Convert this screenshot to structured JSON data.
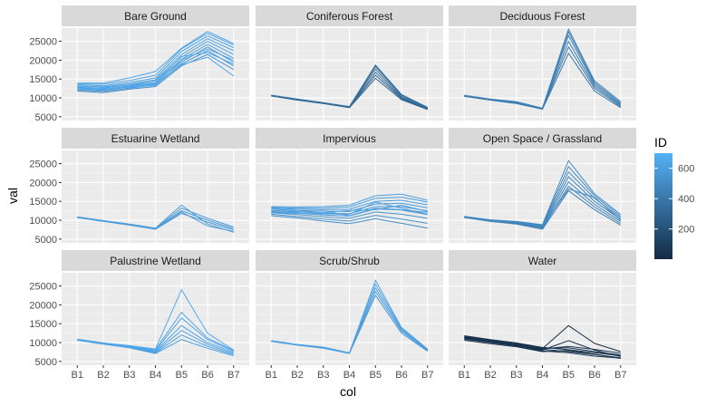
{
  "chart_data": {
    "type": "line",
    "facet_layout": "3x3 grid",
    "x_axis": {
      "label": "col",
      "categories": [
        "B1",
        "B2",
        "B3",
        "B4",
        "B5",
        "B6",
        "B7"
      ]
    },
    "y_axis": {
      "label": "val",
      "ticks": [
        5000,
        10000,
        15000,
        20000,
        25000
      ],
      "ylim": [
        4000,
        28500
      ]
    },
    "legend": {
      "title": "ID",
      "type": "colorbar",
      "position": "right",
      "ticks": [
        200,
        400,
        600
      ],
      "range": [
        1,
        700
      ],
      "low_color": "#132B43",
      "high_color": "#56B1F7"
    },
    "grid": true,
    "background": "#EBEBEB",
    "panels": [
      {
        "title": "Bare Ground",
        "series": [
          {
            "id": 520,
            "values": [
              11800,
              11400,
              12300,
              13000,
              18500,
              21500,
              17500
            ]
          },
          {
            "id": 540,
            "values": [
              12100,
              11700,
              12600,
              13400,
              19000,
              22500,
              18500
            ]
          },
          {
            "id": 560,
            "values": [
              12400,
              12000,
              12900,
              13800,
              19500,
              23500,
              19500
            ]
          },
          {
            "id": 580,
            "values": [
              12700,
              12300,
              13100,
              14100,
              20200,
              24200,
              20500
            ]
          },
          {
            "id": 600,
            "values": [
              12900,
              12600,
              13400,
              14500,
              20800,
              25000,
              21500
            ]
          },
          {
            "id": 610,
            "values": [
              13200,
              12900,
              13700,
              14800,
              21500,
              25700,
              22500
            ]
          },
          {
            "id": 620,
            "values": [
              13500,
              13200,
              14100,
              15300,
              22300,
              26400,
              23300
            ]
          },
          {
            "id": 630,
            "values": [
              13800,
              13600,
              14600,
              16000,
              23000,
              27100,
              24000
            ]
          },
          {
            "id": 640,
            "values": [
              13900,
              13900,
              15300,
              17000,
              23200,
              27600,
              24400
            ]
          },
          {
            "id": 650,
            "values": [
              12600,
              12200,
              13000,
              13600,
              18800,
              20800,
              15800
            ]
          },
          {
            "id": 660,
            "values": [
              12300,
              12800,
              13300,
              14000,
              21000,
              22000,
              19000
            ]
          },
          {
            "id": 670,
            "values": [
              13100,
              12400,
              12800,
              13300,
              20000,
              23000,
              20000
            ]
          }
        ]
      },
      {
        "title": "Coniferous Forest",
        "series": [
          {
            "id": 300,
            "values": [
              10500,
              9400,
              8500,
              7400,
              15200,
              9500,
              6900
            ]
          },
          {
            "id": 310,
            "values": [
              10500,
              9500,
              8500,
              7500,
              16000,
              9800,
              7000
            ]
          },
          {
            "id": 320,
            "values": [
              10600,
              9500,
              8600,
              7500,
              16800,
              10000,
              7100
            ]
          },
          {
            "id": 330,
            "values": [
              10600,
              9600,
              8600,
              7600,
              17600,
              10300,
              7200
            ]
          },
          {
            "id": 340,
            "values": [
              10700,
              9600,
              8700,
              7600,
              18300,
              10600,
              7300
            ]
          },
          {
            "id": 350,
            "values": [
              10700,
              9700,
              8700,
              7700,
              18700,
              10900,
              7500
            ]
          }
        ]
      },
      {
        "title": "Deciduous Forest",
        "series": [
          {
            "id": 400,
            "values": [
              10400,
              9400,
              8500,
              7000,
              21800,
              11800,
              7400
            ]
          },
          {
            "id": 410,
            "values": [
              10500,
              9500,
              8600,
              7100,
              23500,
              12500,
              7700
            ]
          },
          {
            "id": 420,
            "values": [
              10500,
              9500,
              8700,
              7100,
              25000,
              13000,
              8000
            ]
          },
          {
            "id": 430,
            "values": [
              10600,
              9600,
              8800,
              7200,
              26500,
              13500,
              8300
            ]
          },
          {
            "id": 440,
            "values": [
              10600,
              9600,
              8900,
              7200,
              27500,
              14000,
              8600
            ]
          },
          {
            "id": 450,
            "values": [
              10700,
              9700,
              9000,
              7300,
              28200,
              14500,
              9000
            ]
          }
        ]
      },
      {
        "title": "Estuarine Wetland",
        "series": [
          {
            "id": 560,
            "values": [
              10700,
              9700,
              8700,
              7600,
              11800,
              9500,
              7400
            ]
          },
          {
            "id": 570,
            "values": [
              10800,
              9800,
              8800,
              7700,
              12500,
              10000,
              7800
            ]
          },
          {
            "id": 580,
            "values": [
              10800,
              9800,
              8900,
              7800,
              13200,
              10500,
              8200
            ]
          },
          {
            "id": 590,
            "values": [
              10900,
              9900,
              9000,
              7900,
              14000,
              9000,
              6800
            ]
          },
          {
            "id": 600,
            "values": [
              10700,
              9700,
              8800,
              7700,
              12200,
              8500,
              7000
            ]
          }
        ]
      },
      {
        "title": "Impervious",
        "series": [
          {
            "id": 520,
            "values": [
              11200,
              10600,
              9800,
              9100,
              10400,
              9200,
              7900
            ]
          },
          {
            "id": 530,
            "values": [
              11600,
              11000,
              10300,
              9800,
              11300,
              10300,
              9200
            ]
          },
          {
            "id": 540,
            "values": [
              12000,
              11500,
              10900,
              10500,
              12200,
              11600,
              10500
            ]
          },
          {
            "id": 550,
            "values": [
              12300,
              11900,
              11400,
              11100,
              13000,
              12700,
              11500
            ]
          },
          {
            "id": 560,
            "values": [
              12600,
              12200,
              11900,
              11700,
              13600,
              13600,
              12500
            ]
          },
          {
            "id": 570,
            "values": [
              12900,
              12600,
              12400,
              12300,
              14300,
              14500,
              13300
            ]
          },
          {
            "id": 580,
            "values": [
              13200,
              12900,
              12800,
              12900,
              15000,
              15300,
              14100
            ]
          },
          {
            "id": 590,
            "values": [
              13400,
              13200,
              13200,
              13500,
              15800,
              16100,
              14800
            ]
          },
          {
            "id": 600,
            "values": [
              13600,
              13500,
              13600,
              14000,
              16500,
              16900,
              15300
            ]
          },
          {
            "id": 610,
            "values": [
              12100,
              11800,
              11700,
              11600,
              14800,
              13200,
              11600
            ]
          },
          {
            "id": 620,
            "values": [
              13000,
              12300,
              12000,
              12600,
              12800,
              14000,
              12300
            ]
          },
          {
            "id": 630,
            "values": [
              11900,
              12200,
              12500,
              11200,
              13200,
              12800,
              12100
            ]
          }
        ]
      },
      {
        "title": "Open Space / Grassland",
        "series": [
          {
            "id": 440,
            "values": [
              10700,
              9700,
              9000,
              7600,
              17800,
              12800,
              8700
            ]
          },
          {
            "id": 450,
            "values": [
              10800,
              9800,
              9200,
              7900,
              19000,
              13500,
              9200
            ]
          },
          {
            "id": 460,
            "values": [
              10800,
              9900,
              9300,
              8100,
              20200,
              14200,
              9700
            ]
          },
          {
            "id": 470,
            "values": [
              10900,
              9900,
              9400,
              8300,
              21500,
              15000,
              10200
            ]
          },
          {
            "id": 480,
            "values": [
              10900,
              10000,
              9500,
              8500,
              22800,
              15800,
              10600
            ]
          },
          {
            "id": 490,
            "values": [
              11000,
              10100,
              9600,
              8700,
              24200,
              16500,
              11000
            ]
          },
          {
            "id": 500,
            "values": [
              11000,
              10100,
              9700,
              8800,
              25800,
              17000,
              11500
            ]
          },
          {
            "id": 510,
            "values": [
              10900,
              10000,
              9500,
              8400,
              18300,
              16000,
              10000
            ]
          }
        ]
      },
      {
        "title": "Palustrine Wetland",
        "series": [
          {
            "id": 600,
            "values": [
              10600,
              9600,
              8600,
              7100,
              10800,
              8500,
              6500
            ]
          },
          {
            "id": 610,
            "values": [
              10700,
              9700,
              8700,
              7300,
              12000,
              9000,
              6800
            ]
          },
          {
            "id": 620,
            "values": [
              10700,
              9700,
              8800,
              7500,
              13200,
              9500,
              7100
            ]
          },
          {
            "id": 630,
            "values": [
              10800,
              9800,
              8900,
              7700,
              14500,
              10000,
              7400
            ]
          },
          {
            "id": 640,
            "values": [
              10800,
              9800,
              9000,
              7900,
              16500,
              10800,
              7700
            ]
          },
          {
            "id": 650,
            "values": [
              10900,
              9900,
              9100,
              8100,
              18000,
              11200,
              7900
            ]
          },
          {
            "id": 660,
            "values": [
              10900,
              9900,
              9200,
              8300,
              24000,
              12500,
              8000
            ]
          }
        ]
      },
      {
        "title": "Scrub/Shrub",
        "series": [
          {
            "id": 560,
            "values": [
              10300,
              9300,
              8500,
              7100,
              22500,
              12500,
              7700
            ]
          },
          {
            "id": 580,
            "values": [
              10400,
              9400,
              8600,
              7200,
              23500,
              13000,
              7900
            ]
          },
          {
            "id": 600,
            "values": [
              10400,
              9400,
              8700,
              7200,
              24500,
              13400,
              8000
            ]
          },
          {
            "id": 620,
            "values": [
              10500,
              9500,
              8700,
              7300,
              25500,
              13700,
              8200
            ]
          },
          {
            "id": 640,
            "values": [
              10500,
              9500,
              8800,
              7300,
              26500,
              14000,
              8300
            ]
          }
        ]
      },
      {
        "title": "Water",
        "series": [
          {
            "id": 5,
            "values": [
              11800,
              10800,
              9900,
              8700,
              8100,
              7300,
              6500
            ]
          },
          {
            "id": 10,
            "values": [
              11400,
              10400,
              9500,
              8400,
              14500,
              9800,
              7600
            ]
          },
          {
            "id": 15,
            "values": [
              11000,
              10100,
              9200,
              8000,
              10500,
              8000,
              6300
            ]
          },
          {
            "id": 20,
            "values": [
              10600,
              9700,
              8900,
              7600,
              7900,
              6900,
              5800
            ]
          },
          {
            "id": 30,
            "values": [
              11200,
              10300,
              9300,
              8200,
              7600,
              6800,
              6000
            ]
          },
          {
            "id": 40,
            "values": [
              11600,
              10600,
              9700,
              8500,
              8600,
              7600,
              6700
            ]
          },
          {
            "id": 50,
            "values": [
              10900,
              10000,
              9100,
              7800,
              7300,
              6400,
              5900
            ]
          },
          {
            "id": 60,
            "values": [
              11500,
              10500,
              9500,
              8300,
              9000,
              8200,
              7200
            ]
          }
        ]
      }
    ]
  }
}
